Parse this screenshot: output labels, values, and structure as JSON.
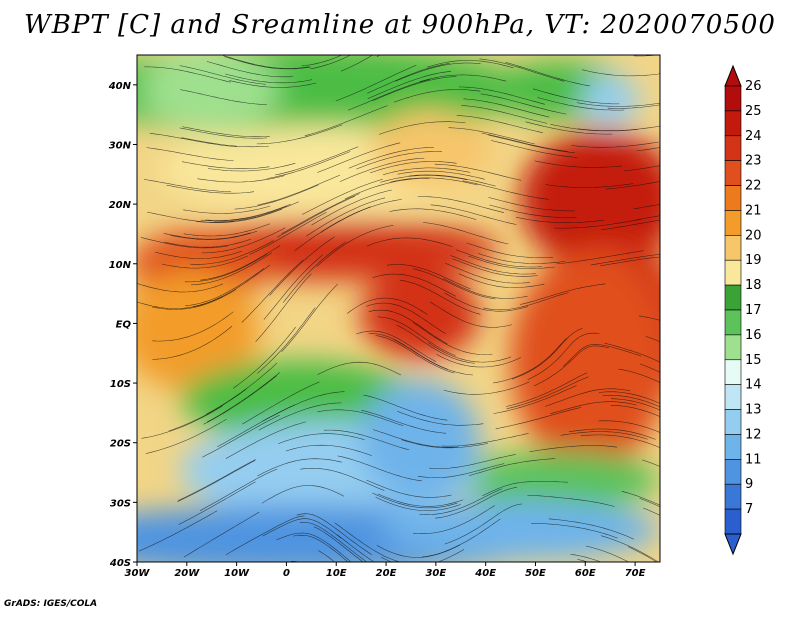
{
  "title": "WBPT [C] and Sreamline at 900hPa, VT: 2020070500",
  "footer": "GrADS: IGES/COLA",
  "map": {
    "lon_range": [
      -30,
      75
    ],
    "lat_range": [
      -40,
      45
    ],
    "lon_ticks": [
      "30W",
      "20W",
      "10W",
      "0",
      "10E",
      "20E",
      "30E",
      "40E",
      "50E",
      "60E",
      "70E"
    ],
    "lat_ticks": [
      "40S",
      "30S",
      "20S",
      "10S",
      "EQ",
      "10N",
      "20N",
      "30N",
      "40N"
    ],
    "regions": [
      {
        "name": "tropical-red-band",
        "level": 24,
        "color": "#d33316"
      },
      {
        "name": "arabian-sea-red",
        "level": 25,
        "color": "#c41a0e"
      },
      {
        "name": "sahara-tan",
        "level": 19,
        "color": "#f2d586"
      },
      {
        "name": "mediterranean-green",
        "level": 17,
        "color": "#4bbd45"
      },
      {
        "name": "southern-ocean-blue",
        "level": 12,
        "color": "#5a9de0"
      }
    ]
  },
  "colorbar": {
    "levels": [
      "26",
      "25",
      "24",
      "23",
      "22",
      "21",
      "20",
      "19",
      "18",
      "17",
      "16",
      "15",
      "14",
      "13",
      "12",
      "11",
      "9",
      "7"
    ],
    "colors": [
      "#b20c0c",
      "#c41a0e",
      "#d33316",
      "#e0501f",
      "#ed7a1c",
      "#f39c2b",
      "#f7c56a",
      "#f9e79b",
      "#3ba336",
      "#5cc25a",
      "#9ee08e",
      "#e6fbf5",
      "#bfe6f5",
      "#94cdf0",
      "#6eb3ea",
      "#4f94e0",
      "#3a78d8",
      "#2b5fcf"
    ]
  }
}
